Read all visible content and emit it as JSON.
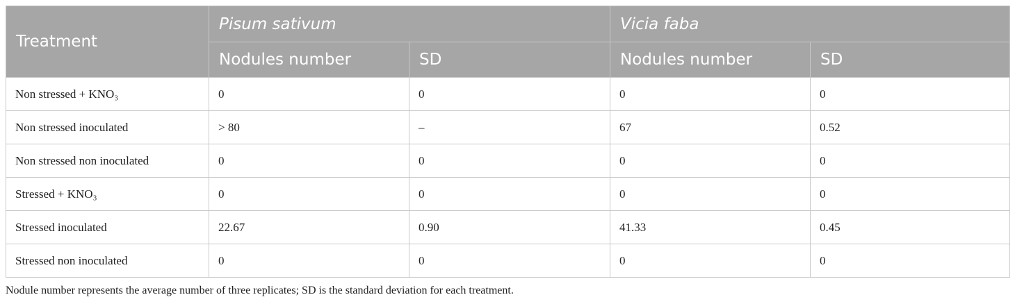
{
  "table": {
    "header": {
      "treatment": "Treatment",
      "groups": [
        {
          "name": "Pisum sativum",
          "columns": [
            "Nodules number",
            "SD"
          ]
        },
        {
          "name": "Vicia faba",
          "columns": [
            "Nodules number",
            "SD"
          ]
        }
      ]
    },
    "rows": [
      [
        "Non stressed + KNO₃",
        "0",
        "0",
        "0",
        "0"
      ],
      [
        "Non stressed inoculated",
        "> 80",
        "–",
        "67",
        "0.52"
      ],
      [
        "Non stressed non inoculated",
        "0",
        "0",
        "0",
        "0"
      ],
      [
        "Stressed + KNO₃",
        "0",
        "0",
        "0",
        "0"
      ],
      [
        "Stressed inoculated",
        "22.67",
        "0.90",
        "41.33",
        "0.45"
      ],
      [
        "Stressed non inoculated",
        "0",
        "0",
        "0",
        "0"
      ]
    ],
    "footnote": "Nodule number represents the average number of three replicates; SD is the standard deviation for each treatment."
  }
}
